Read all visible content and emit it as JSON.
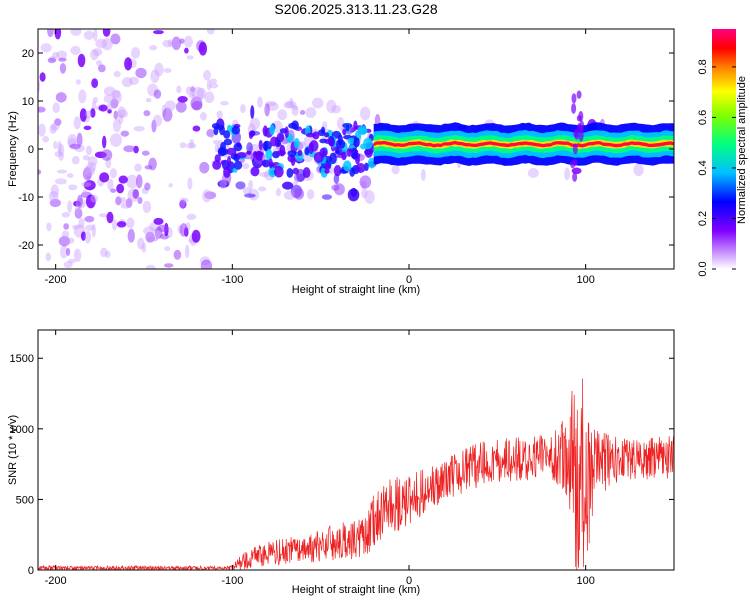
{
  "title": "S206.2025.313.11.23.G28",
  "chart_data": [
    {
      "type": "heatmap",
      "xlabel": "Height of straight line (km)",
      "ylabel": "Frequency (Hz)",
      "xlim": [
        -210,
        150
      ],
      "ylim": [
        -25,
        25
      ],
      "xticks": [
        -200,
        -100,
        0,
        100
      ],
      "yticks": [
        20,
        10,
        0,
        -10,
        -20
      ],
      "colorbar": {
        "label": "Normalized spectral amplitude",
        "range": [
          0,
          0.95
        ],
        "ticks": [
          "0.0",
          "0.2",
          "0.4",
          "0.6",
          "0.8"
        ],
        "colors": [
          "#ffffff",
          "#8000ff",
          "#0000ff",
          "#00ffff",
          "#00ff00",
          "#ffff00",
          "#ff8000",
          "#ff0000",
          "#ff0080"
        ]
      },
      "ridge": {
        "description_freq_hz": 1.0,
        "x_range": [
          -20,
          150
        ]
      },
      "colors": {
        "noise": "#8a2be2",
        "ridge_outer": "#0000ff",
        "ridge_mid": "#00ff80",
        "ridge_core": "#ff0040"
      }
    },
    {
      "type": "line",
      "xlabel": "Height of straight line (km)",
      "ylabel": "SNR (10 * v/v)",
      "xlim": [
        -210,
        150
      ],
      "ylim": [
        0,
        1700
      ],
      "xticks": [
        -200,
        -100,
        0,
        100
      ],
      "yticks": [
        0,
        500,
        1000,
        1500
      ],
      "series": [
        {
          "name": "SNR",
          "color": "#ee2222",
          "envelope_x": [
            -210,
            -100,
            -95,
            -80,
            -60,
            -40,
            -25,
            -20,
            -10,
            0,
            20,
            40,
            60,
            80,
            90,
            95,
            100,
            105,
            120,
            150
          ],
          "envelope_mean": [
            15,
            15,
            60,
            120,
            150,
            200,
            230,
            350,
            450,
            500,
            650,
            750,
            780,
            800,
            800,
            700,
            600,
            750,
            780,
            800
          ],
          "envelope_spread": [
            15,
            15,
            60,
            90,
            100,
            130,
            150,
            180,
            200,
            180,
            160,
            160,
            160,
            160,
            300,
            800,
            700,
            250,
            150,
            150
          ]
        }
      ]
    }
  ]
}
